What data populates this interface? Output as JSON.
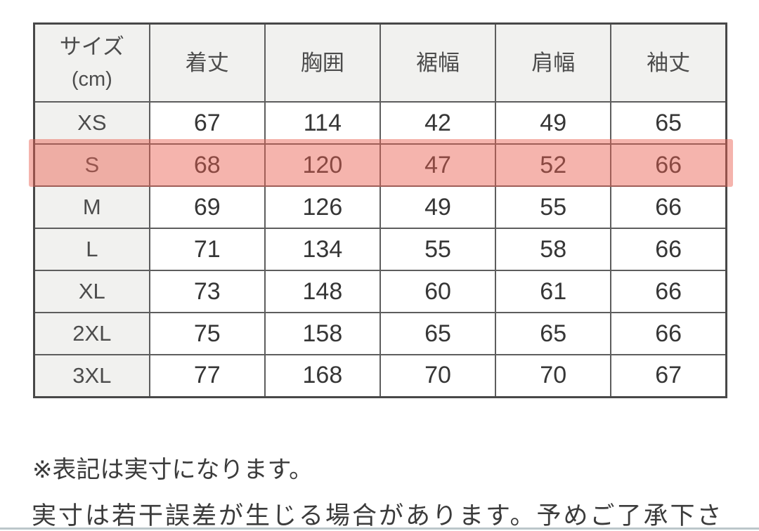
{
  "table": {
    "header": {
      "size_label_line1": "サイズ",
      "size_label_line2": "(cm)",
      "columns": [
        "着丈",
        "胸囲",
        "裾幅",
        "肩幅",
        "袖丈"
      ]
    },
    "rows": [
      {
        "size": "XS",
        "values": [
          "67",
          "114",
          "42",
          "49",
          "65"
        ],
        "highlighted": false
      },
      {
        "size": "S",
        "values": [
          "68",
          "120",
          "47",
          "52",
          "66"
        ],
        "highlighted": true
      },
      {
        "size": "M",
        "values": [
          "69",
          "126",
          "49",
          "55",
          "66"
        ],
        "highlighted": false
      },
      {
        "size": "L",
        "values": [
          "71",
          "134",
          "55",
          "58",
          "66"
        ],
        "highlighted": false
      },
      {
        "size": "XL",
        "values": [
          "73",
          "148",
          "60",
          "61",
          "66"
        ],
        "highlighted": false
      },
      {
        "size": "2XL",
        "values": [
          "75",
          "158",
          "65",
          "65",
          "66"
        ],
        "highlighted": false
      },
      {
        "size": "3XL",
        "values": [
          "77",
          "168",
          "70",
          "70",
          "67"
        ],
        "highlighted": false
      }
    ]
  },
  "notes": {
    "line1": "※表記は実寸になります。",
    "line2": "実寸は若干誤差が生じる場合があります。予めご了承下さ"
  },
  "colors": {
    "highlight_fill": "rgba(233,95,81,0.47)",
    "header_bg": "#f1f1ef",
    "outer_border": "#484848",
    "inner_border": "#5d5d5d",
    "value_text": "#363636",
    "note_text": "#3b3b3b",
    "bottom_divider": "#bcc7ca"
  },
  "chart_data": {
    "type": "table",
    "title": "サイズ (cm)",
    "columns": [
      "サイズ(cm)",
      "着丈",
      "胸囲",
      "裾幅",
      "肩幅",
      "袖丈"
    ],
    "rows": [
      [
        "XS",
        67,
        114,
        42,
        49,
        65
      ],
      [
        "S",
        68,
        120,
        47,
        52,
        66
      ],
      [
        "M",
        69,
        126,
        49,
        55,
        66
      ],
      [
        "L",
        71,
        134,
        55,
        58,
        66
      ],
      [
        "XL",
        73,
        148,
        60,
        61,
        66
      ],
      [
        "2XL",
        75,
        158,
        65,
        65,
        66
      ],
      [
        "3XL",
        77,
        168,
        70,
        70,
        67
      ]
    ],
    "highlighted_row": "S",
    "footnotes": [
      "※表記は実寸になります。",
      "実寸は若干誤差が生じる場合があります。予めご了承下さ"
    ]
  }
}
